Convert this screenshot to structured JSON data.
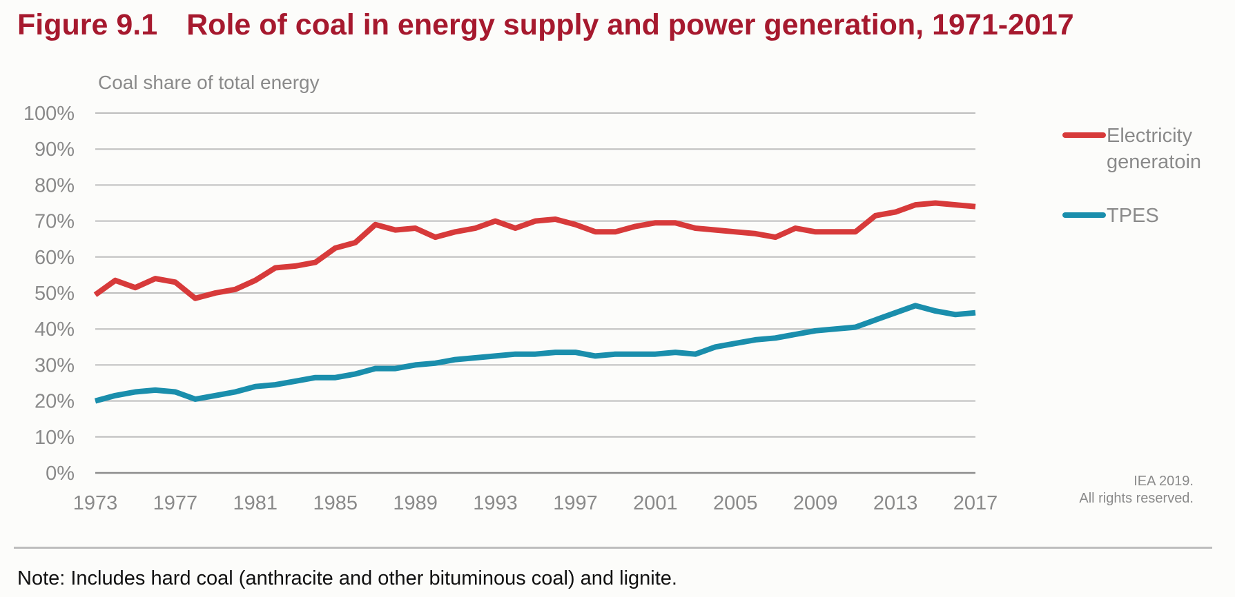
{
  "figure": {
    "number": "Figure 9.1",
    "title": "Role of coal in energy supply and power generation, 1971-2017"
  },
  "copyright": {
    "line1": "IEA 2019.",
    "line2": "All rights reserved."
  },
  "note": "Note: Includes hard coal (anthracite and other bituminous coal) and lignite.",
  "chart_data": {
    "type": "line",
    "ylabel": "Coal share of total energy",
    "xlabel": "",
    "ylim": [
      0,
      100
    ],
    "y_tick_labels": [
      "0%",
      "10%",
      "20%",
      "30%",
      "40%",
      "50%",
      "60%",
      "70%",
      "80%",
      "90%",
      "100%"
    ],
    "x_tick_labels": [
      "1973",
      "1977",
      "1981",
      "1985",
      "1989",
      "1993",
      "1997",
      "2001",
      "2005",
      "2009",
      "2013",
      "2017"
    ],
    "xlim": [
      1973,
      2017
    ],
    "grid": true,
    "legend_position": "right",
    "x": [
      1973,
      1974,
      1975,
      1976,
      1977,
      1978,
      1979,
      1980,
      1981,
      1982,
      1983,
      1984,
      1985,
      1986,
      1987,
      1988,
      1989,
      1990,
      1991,
      1992,
      1993,
      1994,
      1995,
      1996,
      1997,
      1998,
      1999,
      2000,
      2001,
      2002,
      2003,
      2004,
      2005,
      2006,
      2007,
      2008,
      2009,
      2010,
      2011,
      2012,
      2013,
      2014,
      2015,
      2016,
      2017
    ],
    "series": [
      {
        "name": "Electricity generatoin",
        "color": "#d73a3a",
        "values": [
          49.5,
          53.5,
          51.5,
          54,
          53,
          48.5,
          50,
          51,
          53.5,
          57,
          57.5,
          58.5,
          62.5,
          64,
          69,
          67.5,
          68,
          65.5,
          67,
          68,
          70,
          68,
          70,
          70.5,
          69,
          67,
          67,
          68.5,
          69.5,
          69.5,
          68,
          67.5,
          67,
          66.5,
          65.5,
          68,
          67,
          67,
          67,
          71.5,
          72.5,
          74.5,
          75,
          74.5,
          74
        ]
      },
      {
        "name": "TPES",
        "color": "#1a8eac",
        "values": [
          20,
          21.5,
          22.5,
          23,
          22.5,
          20.5,
          21.5,
          22.5,
          24,
          24.5,
          25.5,
          26.5,
          26.5,
          27.5,
          29,
          29,
          30,
          30.5,
          31.5,
          32,
          32.5,
          33,
          33,
          33.5,
          33.5,
          32.5,
          33,
          33,
          33,
          33.5,
          33,
          35,
          36,
          37,
          37.5,
          38.5,
          39.5,
          40,
          40.5,
          42.5,
          44.5,
          46.5,
          45,
          44,
          44.5
        ]
      }
    ]
  }
}
